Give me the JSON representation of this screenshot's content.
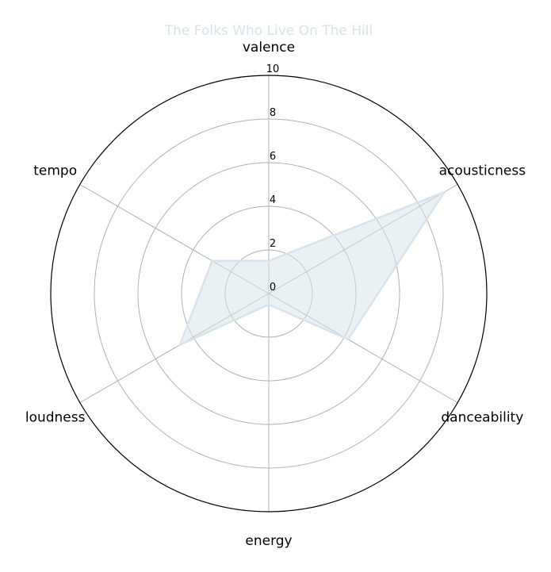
{
  "chart_data": {
    "type": "radar",
    "title": "The Folks Who Live On The Hill",
    "categories": [
      "valence",
      "acousticness",
      "danceability",
      "energy",
      "loudness",
      "tempo"
    ],
    "series": [
      {
        "values": [
          1.5,
          9.3,
          4.2,
          0.5,
          4.7,
          3.0
        ]
      }
    ],
    "rlim": [
      0,
      10
    ],
    "rticks": [
      "0",
      "2",
      "4",
      "6",
      "8",
      "10"
    ],
    "grid": true,
    "colors": {
      "series": "#d6e4ea",
      "grid": "#b0b0b0",
      "frame": "#000000"
    }
  }
}
